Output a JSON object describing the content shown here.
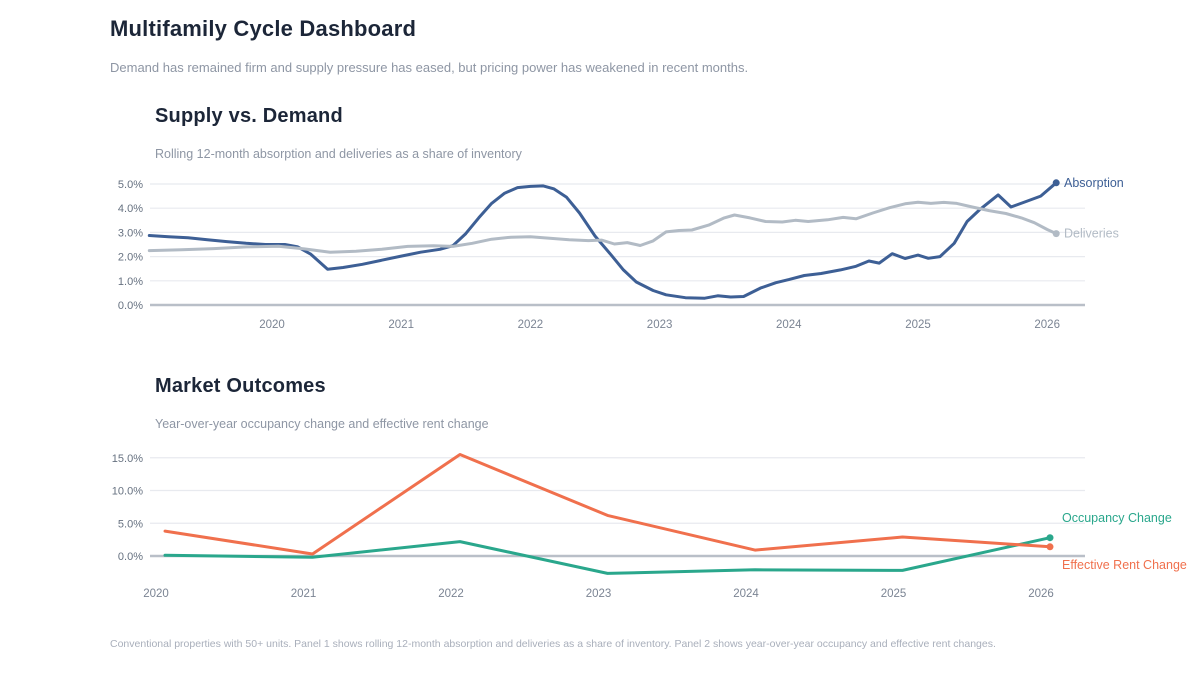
{
  "header": {
    "title": "Multifamily Cycle Dashboard",
    "subtitle": "Demand has remained firm and supply pressure has eased, but pricing power has weakened in recent months."
  },
  "footnote": "Conventional properties with 50+ units. Panel 1 shows rolling 12-month absorption and deliveries as a share of inventory. Panel 2 shows year-over-year occupancy and effective rent changes.",
  "colors": {
    "title": "#1c2638",
    "subtitle": "#8e96a4",
    "footnote": "#a9afbb",
    "grid": "#e8eaef",
    "zero_line": "#b9bfc8",
    "y_tick_label": "#667180",
    "x_tick_label": "#7b8493",
    "absorption": "#3d5f95",
    "deliveries": "#b2bbc5",
    "occupancy_change": "#2aa78c",
    "effective_rent_change": "#f0704d"
  },
  "charts": [
    {
      "title": "Supply vs. Demand",
      "subtitle": "Rolling 12-month absorption and deliveries as a share of inventory",
      "chart_data": {
        "type": "line",
        "legend": "end-of-line labels, right side",
        "grid": "horizontal only, zero line emphasized",
        "x_axis": {
          "tick_values": [
            2020,
            2021,
            2022,
            2023,
            2024,
            2025,
            2026
          ],
          "tick_labels": [
            "2020",
            "2021",
            "2022",
            "2023",
            "2024",
            "2025",
            "2026"
          ],
          "range": [
            2019.05,
            2026.45
          ]
        },
        "y_axis": {
          "unit": "percent of inventory",
          "tick_values": [
            0,
            1,
            2,
            3,
            4,
            5
          ],
          "tick_labels": [
            "0.0%",
            "1.0%",
            "2.0%",
            "3.0%",
            "4.0%",
            "5.0%"
          ],
          "range": [
            0,
            5.2
          ]
        },
        "series": [
          {
            "name": "Absorption",
            "color": "#3d5f95",
            "points": [
              [
                2019.05,
                2.87
              ],
              [
                2019.2,
                2.82
              ],
              [
                2019.35,
                2.78
              ],
              [
                2019.5,
                2.7
              ],
              [
                2019.65,
                2.62
              ],
              [
                2019.8,
                2.55
              ],
              [
                2019.95,
                2.5
              ],
              [
                2020.1,
                2.5
              ],
              [
                2020.2,
                2.4
              ],
              [
                2020.3,
                2.1
              ],
              [
                2020.43,
                1.48
              ],
              [
                2020.55,
                1.55
              ],
              [
                2020.7,
                1.68
              ],
              [
                2020.85,
                1.85
              ],
              [
                2021.0,
                2.02
              ],
              [
                2021.15,
                2.18
              ],
              [
                2021.3,
                2.3
              ],
              [
                2021.4,
                2.45
              ],
              [
                2021.5,
                2.95
              ],
              [
                2021.6,
                3.6
              ],
              [
                2021.7,
                4.2
              ],
              [
                2021.8,
                4.62
              ],
              [
                2021.9,
                4.85
              ],
              [
                2022.0,
                4.9
              ],
              [
                2022.1,
                4.92
              ],
              [
                2022.18,
                4.8
              ],
              [
                2022.28,
                4.45
              ],
              [
                2022.38,
                3.8
              ],
              [
                2022.5,
                2.85
              ],
              [
                2022.62,
                2.1
              ],
              [
                2022.72,
                1.45
              ],
              [
                2022.82,
                0.95
              ],
              [
                2022.95,
                0.6
              ],
              [
                2023.05,
                0.42
              ],
              [
                2023.2,
                0.3
              ],
              [
                2023.35,
                0.28
              ],
              [
                2023.45,
                0.38
              ],
              [
                2023.55,
                0.33
              ],
              [
                2023.65,
                0.35
              ],
              [
                2023.78,
                0.7
              ],
              [
                2023.9,
                0.92
              ],
              [
                2024.0,
                1.05
              ],
              [
                2024.12,
                1.22
              ],
              [
                2024.25,
                1.3
              ],
              [
                2024.4,
                1.45
              ],
              [
                2024.52,
                1.6
              ],
              [
                2024.62,
                1.82
              ],
              [
                2024.7,
                1.73
              ],
              [
                2024.8,
                2.12
              ],
              [
                2024.9,
                1.92
              ],
              [
                2025.0,
                2.06
              ],
              [
                2025.08,
                1.93
              ],
              [
                2025.17,
                2.0
              ],
              [
                2025.28,
                2.55
              ],
              [
                2025.38,
                3.45
              ],
              [
                2025.48,
                3.95
              ],
              [
                2025.62,
                4.55
              ],
              [
                2025.72,
                4.05
              ],
              [
                2025.85,
                4.3
              ],
              [
                2025.95,
                4.5
              ],
              [
                2026.07,
                5.05
              ]
            ]
          },
          {
            "name": "Deliveries",
            "color": "#b2bbc5",
            "points": [
              [
                2019.05,
                2.25
              ],
              [
                2019.3,
                2.28
              ],
              [
                2019.55,
                2.33
              ],
              [
                2019.8,
                2.4
              ],
              [
                2020.05,
                2.43
              ],
              [
                2020.25,
                2.32
              ],
              [
                2020.45,
                2.18
              ],
              [
                2020.65,
                2.22
              ],
              [
                2020.85,
                2.3
              ],
              [
                2021.05,
                2.42
              ],
              [
                2021.25,
                2.45
              ],
              [
                2021.4,
                2.42
              ],
              [
                2021.55,
                2.55
              ],
              [
                2021.7,
                2.72
              ],
              [
                2021.85,
                2.8
              ],
              [
                2022.0,
                2.82
              ],
              [
                2022.15,
                2.76
              ],
              [
                2022.3,
                2.7
              ],
              [
                2022.45,
                2.66
              ],
              [
                2022.55,
                2.68
              ],
              [
                2022.65,
                2.52
              ],
              [
                2022.75,
                2.58
              ],
              [
                2022.85,
                2.46
              ],
              [
                2022.95,
                2.65
              ],
              [
                2023.05,
                3.02
              ],
              [
                2023.15,
                3.08
              ],
              [
                2023.25,
                3.1
              ],
              [
                2023.38,
                3.3
              ],
              [
                2023.5,
                3.6
              ],
              [
                2023.58,
                3.72
              ],
              [
                2023.7,
                3.6
              ],
              [
                2023.82,
                3.45
              ],
              [
                2023.95,
                3.43
              ],
              [
                2024.05,
                3.5
              ],
              [
                2024.15,
                3.45
              ],
              [
                2024.3,
                3.52
              ],
              [
                2024.42,
                3.62
              ],
              [
                2024.52,
                3.56
              ],
              [
                2024.65,
                3.8
              ],
              [
                2024.78,
                4.02
              ],
              [
                2024.9,
                4.18
              ],
              [
                2025.0,
                4.25
              ],
              [
                2025.1,
                4.2
              ],
              [
                2025.2,
                4.24
              ],
              [
                2025.3,
                4.2
              ],
              [
                2025.42,
                4.05
              ],
              [
                2025.55,
                3.9
              ],
              [
                2025.68,
                3.78
              ],
              [
                2025.8,
                3.6
              ],
              [
                2025.9,
                3.4
              ],
              [
                2026.0,
                3.12
              ],
              [
                2026.07,
                2.95
              ]
            ]
          }
        ]
      }
    },
    {
      "title": "Market Outcomes",
      "subtitle": "Year-over-year occupancy change and effective rent change",
      "chart_data": {
        "type": "line",
        "legend": "end-of-line labels, right side",
        "grid": "horizontal only, zero line emphasized",
        "x_axis": {
          "tick_values": [
            2020,
            2021,
            2022,
            2023,
            2024,
            2025,
            2026
          ],
          "tick_labels": [
            "2020",
            "2021",
            "2022",
            "2023",
            "2024",
            "2025",
            "2026"
          ],
          "range": [
            2020,
            2026.3
          ]
        },
        "y_axis": {
          "unit": "percent year-over-year",
          "tick_values": [
            0,
            5,
            10,
            15
          ],
          "tick_labels": [
            "0.0%",
            "5.0%",
            "10.0%",
            "15.0%"
          ],
          "range": [
            -3.2,
            15.8
          ]
        },
        "series": [
          {
            "name": "Occupancy Change",
            "color": "#2aa78c",
            "points": [
              [
                2020,
                0.1
              ],
              [
                2021,
                -0.2
              ],
              [
                2022,
                2.2
              ],
              [
                2023,
                -2.65
              ],
              [
                2024,
                -2.1
              ],
              [
                2025,
                -2.2
              ],
              [
                2026,
                2.8
              ]
            ]
          },
          {
            "name": "Effective Rent Change",
            "color": "#f0704d",
            "points": [
              [
                2020,
                3.8
              ],
              [
                2021,
                0.3
              ],
              [
                2022,
                15.5
              ],
              [
                2023,
                6.2
              ],
              [
                2024,
                0.9
              ],
              [
                2025,
                2.9
              ],
              [
                2026,
                1.4
              ]
            ]
          }
        ]
      }
    }
  ]
}
